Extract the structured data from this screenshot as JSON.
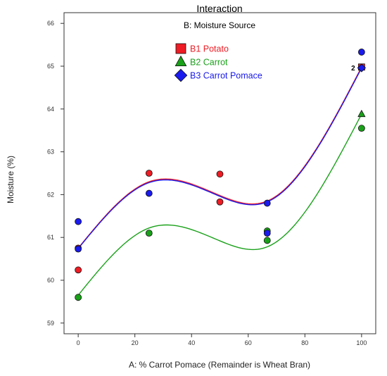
{
  "chart_data": {
    "type": "line",
    "title": "Interaction",
    "xlabel": "A: % Carrot Pomace (Remainder is Wheat Bran)",
    "ylabel": "Moisture (%)",
    "xlim": [
      -5,
      105
    ],
    "ylim": [
      58.75,
      66.25
    ],
    "xticks": [
      0,
      20,
      40,
      60,
      80,
      100
    ],
    "yticks": [
      59,
      60,
      61,
      62,
      63,
      64,
      65,
      66
    ],
    "grid": false,
    "legend": {
      "title": "B: Moisture Source",
      "placement": "top-center"
    },
    "series": [
      {
        "name": "B1 Potato",
        "color": "#ee1c24",
        "marker": "square",
        "fit_curve": {
          "x": [
            0,
            25,
            50,
            66.7,
            100
          ],
          "y": [
            60.75,
            62.3,
            61.98,
            61.85,
            64.98
          ]
        },
        "points": [
          {
            "x": 0,
            "y": 60.75
          },
          {
            "x": 0,
            "y": 60.24
          },
          {
            "x": 25,
            "y": 62.5
          },
          {
            "x": 50,
            "y": 62.48
          },
          {
            "x": 50,
            "y": 61.83
          },
          {
            "x": 100,
            "y": 64.97
          }
        ]
      },
      {
        "name": "B2 Carrot",
        "color": "#1aa11a",
        "marker": "triangle",
        "fit_curve": {
          "x": [
            0,
            25,
            50,
            66.7,
            100
          ],
          "y": [
            59.65,
            61.22,
            60.92,
            60.78,
            63.88
          ]
        },
        "points": [
          {
            "x": 0,
            "y": 59.6
          },
          {
            "x": 25,
            "y": 61.1
          },
          {
            "x": 66.7,
            "y": 61.15
          },
          {
            "x": 66.7,
            "y": 60.93
          },
          {
            "x": 100,
            "y": 63.55
          }
        ]
      },
      {
        "name": "B3 Carrot Pomace",
        "color": "#1a1aee",
        "marker": "diamond",
        "fit_curve": {
          "x": [
            0,
            25,
            50,
            66.7,
            100
          ],
          "y": [
            60.74,
            62.28,
            61.96,
            61.83,
            64.96
          ]
        },
        "points": [
          {
            "x": 0,
            "y": 61.37
          },
          {
            "x": 0,
            "y": 60.73
          },
          {
            "x": 25,
            "y": 62.03
          },
          {
            "x": 66.7,
            "y": 61.8
          },
          {
            "x": 66.7,
            "y": 61.1
          },
          {
            "x": 100,
            "y": 65.33
          }
        ]
      }
    ],
    "annotations": [
      {
        "text": "2",
        "x": 100,
        "y": 64.97
      }
    ]
  }
}
